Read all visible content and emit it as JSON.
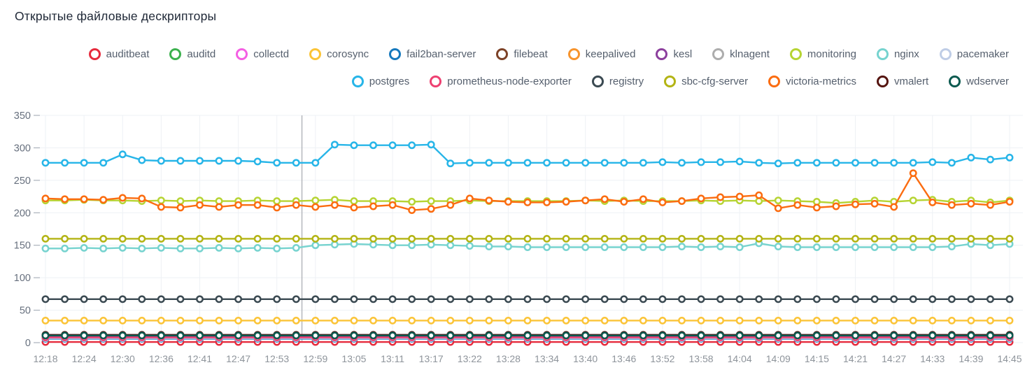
{
  "title": "Открытые файловые дескрипторы",
  "chart_data": {
    "type": "line",
    "title": "Открытые файловые дескрипторы",
    "ylabel": "",
    "xlabel": "",
    "ylim": [
      0,
      350
    ],
    "y_ticks": [
      0,
      50,
      100,
      150,
      200,
      250,
      300,
      350
    ],
    "x_labels": [
      "12:18",
      "12:24",
      "12:30",
      "12:36",
      "12:41",
      "12:47",
      "12:53",
      "12:59",
      "13:05",
      "13:11",
      "13:17",
      "13:22",
      "13:28",
      "13:34",
      "13:40",
      "13:46",
      "13:52",
      "13:58",
      "14:04",
      "14:09",
      "14:15",
      "14:21",
      "14:27",
      "14:33",
      "14:39",
      "14:45"
    ],
    "points": 51,
    "points_per_label": 2,
    "annotation_x_point": 13.3,
    "grid": true,
    "legend_position": "top",
    "legend_rows": [
      12,
      7
    ],
    "series": [
      {
        "name": "auditbeat",
        "color": "#e62b3d",
        "value": 1
      },
      {
        "name": "auditd",
        "color": "#3cb14e",
        "value": 9
      },
      {
        "name": "collectd",
        "color": "#f45fe3",
        "value": 8
      },
      {
        "name": "corosync",
        "color": "#fbc437",
        "value": 34
      },
      {
        "name": "fail2ban-server",
        "color": "#1679bd",
        "value": 6
      },
      {
        "name": "filebeat",
        "color": "#7d4227",
        "value": 9
      },
      {
        "name": "keepalived",
        "color": "#f7942d",
        "value": 8
      },
      {
        "name": "kesl",
        "color": "#8c3f9d",
        "value": 10
      },
      {
        "name": "klnagent",
        "color": "#adadad",
        "value": 11
      },
      {
        "name": "monitoring",
        "color": "#b6d433",
        "values": [
          219,
          219,
          220,
          219,
          219,
          218,
          219,
          218,
          219,
          218,
          218,
          219,
          218,
          218,
          219,
          220,
          218,
          218,
          218,
          217,
          218,
          218,
          219,
          218,
          218,
          218,
          218,
          218,
          219,
          218,
          219,
          218,
          218,
          218,
          219,
          218,
          219,
          218,
          219,
          218,
          217,
          215,
          217,
          219,
          217,
          219,
          220,
          217,
          219,
          216,
          219
        ]
      },
      {
        "name": "nginx",
        "color": "#76d3cf",
        "values": [
          145,
          145,
          146,
          145,
          146,
          145,
          146,
          145,
          145,
          146,
          145,
          146,
          145,
          146,
          150,
          151,
          152,
          151,
          150,
          150,
          151,
          150,
          149,
          148,
          148,
          147,
          147,
          147,
          147,
          147,
          147,
          147,
          147,
          148,
          147,
          148,
          147,
          153,
          148,
          147,
          147,
          147,
          147,
          147,
          147,
          147,
          147,
          148,
          152,
          150,
          152
        ]
      },
      {
        "name": "pacemaker",
        "color": "#bfcde6",
        "value": 7
      },
      {
        "name": "postgres",
        "color": "#27b5e8",
        "values": [
          277,
          277,
          277,
          277,
          290,
          281,
          280,
          280,
          280,
          280,
          280,
          279,
          277,
          277,
          277,
          305,
          304,
          304,
          304,
          304,
          305,
          276,
          277,
          277,
          277,
          277,
          277,
          277,
          277,
          277,
          277,
          277,
          278,
          277,
          278,
          278,
          279,
          277,
          276,
          277,
          277,
          277,
          277,
          277,
          277,
          277,
          278,
          277,
          285,
          282,
          285
        ]
      },
      {
        "name": "prometheus-node-exporter",
        "color": "#ee4071",
        "value": 8
      },
      {
        "name": "registry",
        "color": "#3b4a52",
        "value": 67
      },
      {
        "name": "sbc-cfg-server",
        "color": "#b3b414",
        "value": 160
      },
      {
        "name": "victoria-metrics",
        "color": "#fb6c10",
        "values": [
          222,
          221,
          221,
          220,
          223,
          222,
          209,
          208,
          212,
          209,
          212,
          212,
          208,
          212,
          209,
          212,
          208,
          210,
          212,
          204,
          206,
          212,
          222,
          219,
          217,
          216,
          216,
          217,
          219,
          221,
          217,
          221,
          216,
          218,
          222,
          224,
          225,
          227,
          207,
          212,
          208,
          210,
          213,
          214,
          209,
          261,
          216,
          212,
          214,
          212,
          217
        ]
      },
      {
        "name": "vmalert",
        "color": "#551510",
        "value": 12
      },
      {
        "name": "wdserver",
        "color": "#0c5a50",
        "value": 11
      }
    ]
  }
}
